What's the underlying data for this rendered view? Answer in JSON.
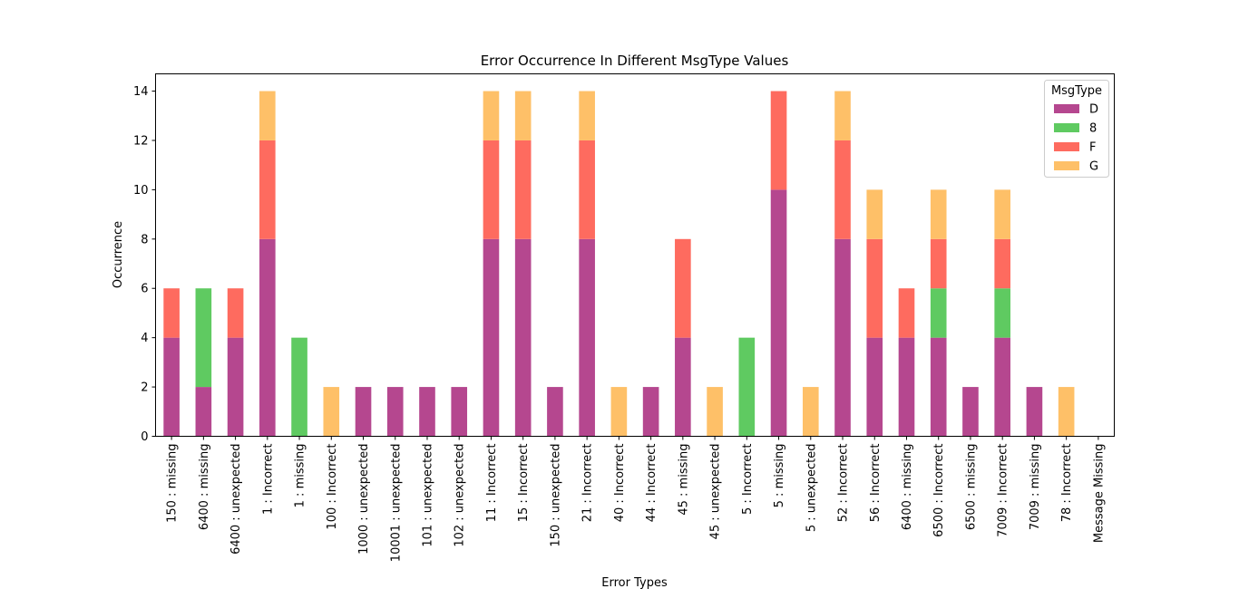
{
  "chart_data": {
    "type": "bar",
    "stacked": true,
    "title": "Error Occurrence In Different MsgType Values",
    "xlabel": "Error Types",
    "ylabel": "Occurrence",
    "ylim": [
      0,
      14.7
    ],
    "yticks": [
      0,
      2,
      4,
      6,
      8,
      10,
      12,
      14
    ],
    "grid": false,
    "legend_title": "MsgType",
    "legend_position": "top-right",
    "categories": [
      "150 : missing",
      "6400 : missing",
      "6400 : unexpected",
      "1 : Incorrect",
      "1 : missing",
      "100 : Incorrect",
      "1000 : unexpected",
      "10001 : unexpected",
      "101 : unexpected",
      "102 : unexpected",
      "11 : Incorrect",
      "15 : Incorrect",
      "150 : unexpected",
      "21 : Incorrect",
      "40 : Incorrect",
      "44 : Incorrect",
      "45 : missing",
      "45 : unexpected",
      "5 : Incorrect",
      "5 : missing",
      "5 : unexpected",
      "52 : Incorrect",
      "56 : Incorrect",
      "6400 : missing",
      "6500 : Incorrect",
      "6500 : missing",
      "7009 : Incorrect",
      "7009 : missing",
      "78 : Incorrect",
      "Message Missing"
    ],
    "series": [
      {
        "name": "D",
        "color": "#b5478f",
        "values": [
          4,
          2,
          4,
          8,
          0,
          0,
          2,
          2,
          2,
          2,
          8,
          8,
          2,
          8,
          0,
          2,
          4,
          0,
          0,
          10,
          0,
          8,
          4,
          4,
          4,
          2,
          4,
          2,
          0,
          0
        ]
      },
      {
        "name": "8",
        "color": "#5fca61",
        "values": [
          0,
          4,
          0,
          0,
          4,
          0,
          0,
          0,
          0,
          0,
          0,
          0,
          0,
          0,
          0,
          0,
          0,
          0,
          4,
          0,
          0,
          0,
          0,
          0,
          2,
          0,
          2,
          0,
          0,
          0
        ]
      },
      {
        "name": "F",
        "color": "#fe6b5f",
        "values": [
          2,
          0,
          2,
          4,
          0,
          0,
          0,
          0,
          0,
          0,
          4,
          4,
          0,
          4,
          0,
          0,
          4,
          0,
          0,
          4,
          0,
          4,
          4,
          2,
          2,
          0,
          2,
          0,
          0,
          0
        ]
      },
      {
        "name": "G",
        "color": "#fec068",
        "values": [
          0,
          0,
          0,
          2,
          0,
          2,
          0,
          0,
          0,
          0,
          2,
          2,
          0,
          2,
          2,
          0,
          0,
          2,
          0,
          0,
          2,
          2,
          2,
          0,
          2,
          0,
          2,
          0,
          2,
          0
        ]
      }
    ]
  }
}
